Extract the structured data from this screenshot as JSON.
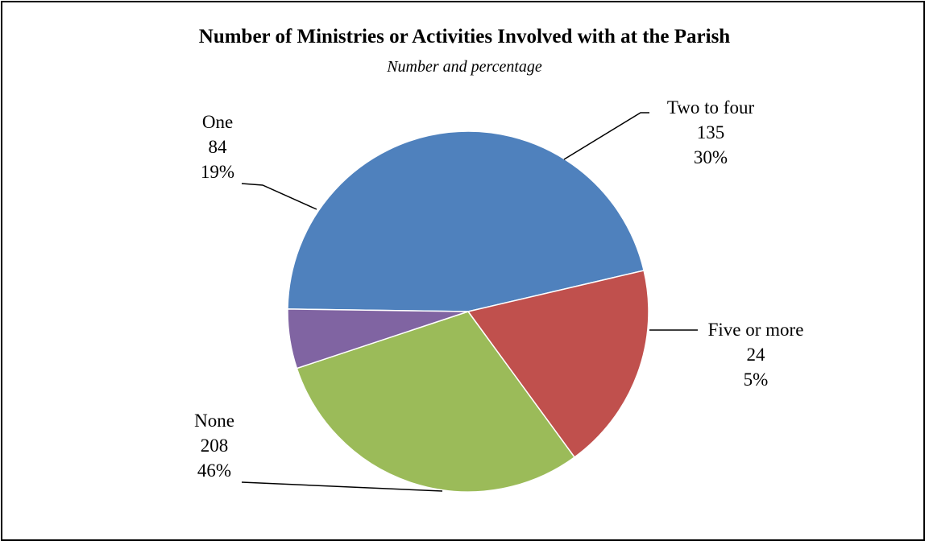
{
  "chart_data": {
    "type": "pie",
    "title": "Number of Ministries or Activities Involved with at the Parish",
    "subtitle": "Number and percentage",
    "legend": "none",
    "slices": [
      {
        "label": "None",
        "value": 208,
        "percent": "46%",
        "color": "#4F81BD"
      },
      {
        "label": "One",
        "value": 84,
        "percent": "19%",
        "color": "#C0504D"
      },
      {
        "label": "Two to four",
        "value": 135,
        "percent": "30%",
        "color": "#9BBB59"
      },
      {
        "label": "Five or more",
        "value": 24,
        "percent": "5%",
        "color": "#8064A2"
      }
    ]
  }
}
